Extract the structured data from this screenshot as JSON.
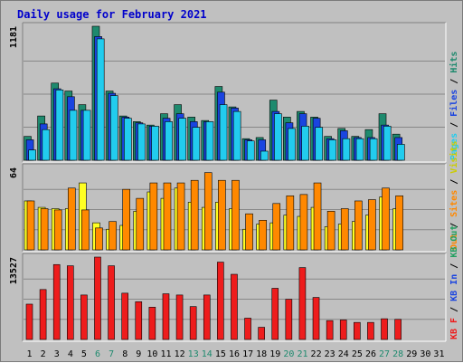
{
  "title": "Daily usage for February 2021",
  "colors": {
    "background": "#c0c0c0",
    "hits": "#1e8a6e",
    "files": "#1a44e0",
    "pages": "#22ccee",
    "visits": "#ffff22",
    "sites": "#ff8800",
    "kbin": "#22a060",
    "kbout": "#1a44e0",
    "kbf": "#ee1c1c",
    "title": "#0000cc",
    "weekend_day": "#1e8a6e"
  },
  "chart_data": [
    {
      "type": "bar",
      "name": "hits-files-pages",
      "ymax_label": "1181",
      "ylim": [
        0,
        1181
      ],
      "legend": [
        "Pages",
        "Files",
        "Hits"
      ],
      "categories": [
        "1",
        "2",
        "3",
        "4",
        "5",
        "6",
        "7",
        "8",
        "9",
        "10",
        "11",
        "12",
        "13",
        "14",
        "15",
        "16",
        "17",
        "18",
        "19",
        "20",
        "21",
        "22",
        "23",
        "24",
        "25",
        "26",
        "27",
        "28",
        "29",
        "30",
        "31"
      ],
      "series": [
        {
          "name": "Hits",
          "values": [
            210,
            390,
            680,
            610,
            490,
            1181,
            610,
            390,
            340,
            310,
            410,
            490,
            380,
            350,
            650,
            470,
            190,
            200,
            530,
            380,
            430,
            380,
            210,
            280,
            210,
            270,
            410,
            230,
            0,
            0,
            0
          ]
        },
        {
          "name": "Files",
          "values": [
            180,
            320,
            630,
            560,
            440,
            1090,
            590,
            380,
            330,
            300,
            370,
            410,
            340,
            340,
            600,
            460,
            180,
            180,
            430,
            330,
            410,
            370,
            190,
            260,
            200,
            200,
            310,
            200,
            0,
            0,
            0
          ]
        },
        {
          "name": "Pages",
          "values": [
            90,
            270,
            620,
            440,
            440,
            1070,
            570,
            370,
            320,
            300,
            340,
            370,
            290,
            340,
            490,
            430,
            170,
            80,
            410,
            280,
            300,
            290,
            180,
            190,
            190,
            190,
            300,
            140,
            0,
            0,
            0
          ]
        }
      ]
    },
    {
      "type": "bar",
      "name": "visits-sites",
      "ymax_label": "64",
      "ylim": [
        0,
        64
      ],
      "legend": [
        "Visits",
        "Sites",
        "Out"
      ],
      "categories": [
        "1",
        "2",
        "3",
        "4",
        "5",
        "6",
        "7",
        "8",
        "9",
        "10",
        "11",
        "12",
        "13",
        "14",
        "15",
        "16",
        "17",
        "18",
        "19",
        "20",
        "21",
        "22",
        "23",
        "24",
        "25",
        "26",
        "27",
        "28",
        "29",
        "30",
        "31"
      ],
      "series": [
        {
          "name": "Visits",
          "values": [
            38,
            33,
            32,
            32,
            52,
            21,
            16,
            19,
            30,
            45,
            40,
            48,
            37,
            33,
            37,
            32,
            16,
            20,
            21,
            27,
            26,
            33,
            18,
            20,
            22,
            27,
            41,
            32,
            0,
            0,
            0
          ]
        },
        {
          "name": "Sites",
          "values": [
            38,
            32,
            31,
            48,
            31,
            17,
            22,
            47,
            40,
            52,
            52,
            52,
            54,
            60,
            54,
            54,
            28,
            23,
            36,
            42,
            43,
            52,
            30,
            32,
            38,
            39,
            48,
            42,
            0,
            0,
            0
          ]
        }
      ]
    },
    {
      "type": "bar",
      "name": "kbytes",
      "ymax_label": "13527",
      "ylim": [
        0,
        13527
      ],
      "legend": [
        "KB F",
        "KB In",
        "KB Out"
      ],
      "categories": [
        "1",
        "2",
        "3",
        "4",
        "5",
        "6",
        "7",
        "8",
        "9",
        "10",
        "11",
        "12",
        "13",
        "14",
        "15",
        "16",
        "17",
        "18",
        "19",
        "20",
        "21",
        "22",
        "23",
        "24",
        "25",
        "26",
        "27",
        "28",
        "29",
        "30",
        "31"
      ],
      "series": [
        {
          "name": "KB F",
          "values": [
            5800,
            8200,
            12300,
            12100,
            7300,
            13527,
            12100,
            7600,
            6200,
            5300,
            7500,
            7300,
            5400,
            7300,
            12700,
            10700,
            3500,
            2000,
            8400,
            6600,
            11800,
            6900,
            3100,
            3200,
            2800,
            2800,
            3400,
            3300,
            0,
            0,
            0
          ]
        }
      ]
    }
  ]
}
